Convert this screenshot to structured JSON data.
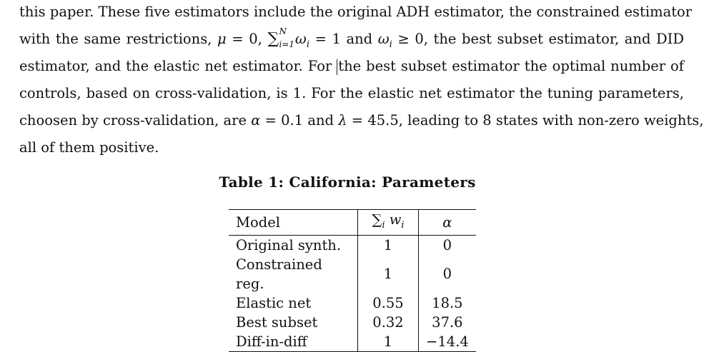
{
  "paragraph": {
    "line1": "this paper. These five estimators include the original ADH estimator, the constrained estimator",
    "line2_before": "with the same restrictions,",
    "line2_mu": "μ",
    "line2_eq0": " = 0,",
    "line2_sum": "∑",
    "line2_sum_up": "N",
    "line2_sum_down": "i=1",
    "line2_w": "ω",
    "line2_wsub": "i",
    "line2_eq1": " = 1 and ",
    "line2_w2": "ω",
    "line2_w2sub": "i",
    "line2_ge": " ≥ 0, the best subset estimator, and DID",
    "line3_before": "estimator, and the elastic net estimator.  For ",
    "line3_after": "the best subset estimator the optimal number of",
    "line4": "controls, based on cross-validation, is 1.  For the elastic net estimator the tuning parameters,",
    "line5_a": "choosen by cross-validation, are ",
    "line5_alpha": "α",
    "line5_b": " = 0.1 and ",
    "line5_lambda": "λ",
    "line5_c": " = 45.5, leading to 8 states with non-zero weights,",
    "line6": "all of them positive."
  },
  "table": {
    "caption": "Table 1: California: Parameters",
    "headers": {
      "model": "Model",
      "weights_sum": "∑",
      "weights_sub": "i",
      "weights_var": "w",
      "weights_var_sub": "i",
      "alpha": "α"
    },
    "rows": [
      {
        "model": "Original synth.",
        "weights": "1",
        "alpha": "0"
      },
      {
        "model": "Constrained reg.",
        "weights": "1",
        "alpha": "0"
      },
      {
        "model": "Elastic net",
        "weights": "0.55",
        "alpha": "18.5"
      },
      {
        "model": "Best subset",
        "weights": "0.32",
        "alpha": "37.6"
      },
      {
        "model": "Diff-in-diff",
        "weights": "1",
        "alpha": "−14.4"
      }
    ]
  }
}
